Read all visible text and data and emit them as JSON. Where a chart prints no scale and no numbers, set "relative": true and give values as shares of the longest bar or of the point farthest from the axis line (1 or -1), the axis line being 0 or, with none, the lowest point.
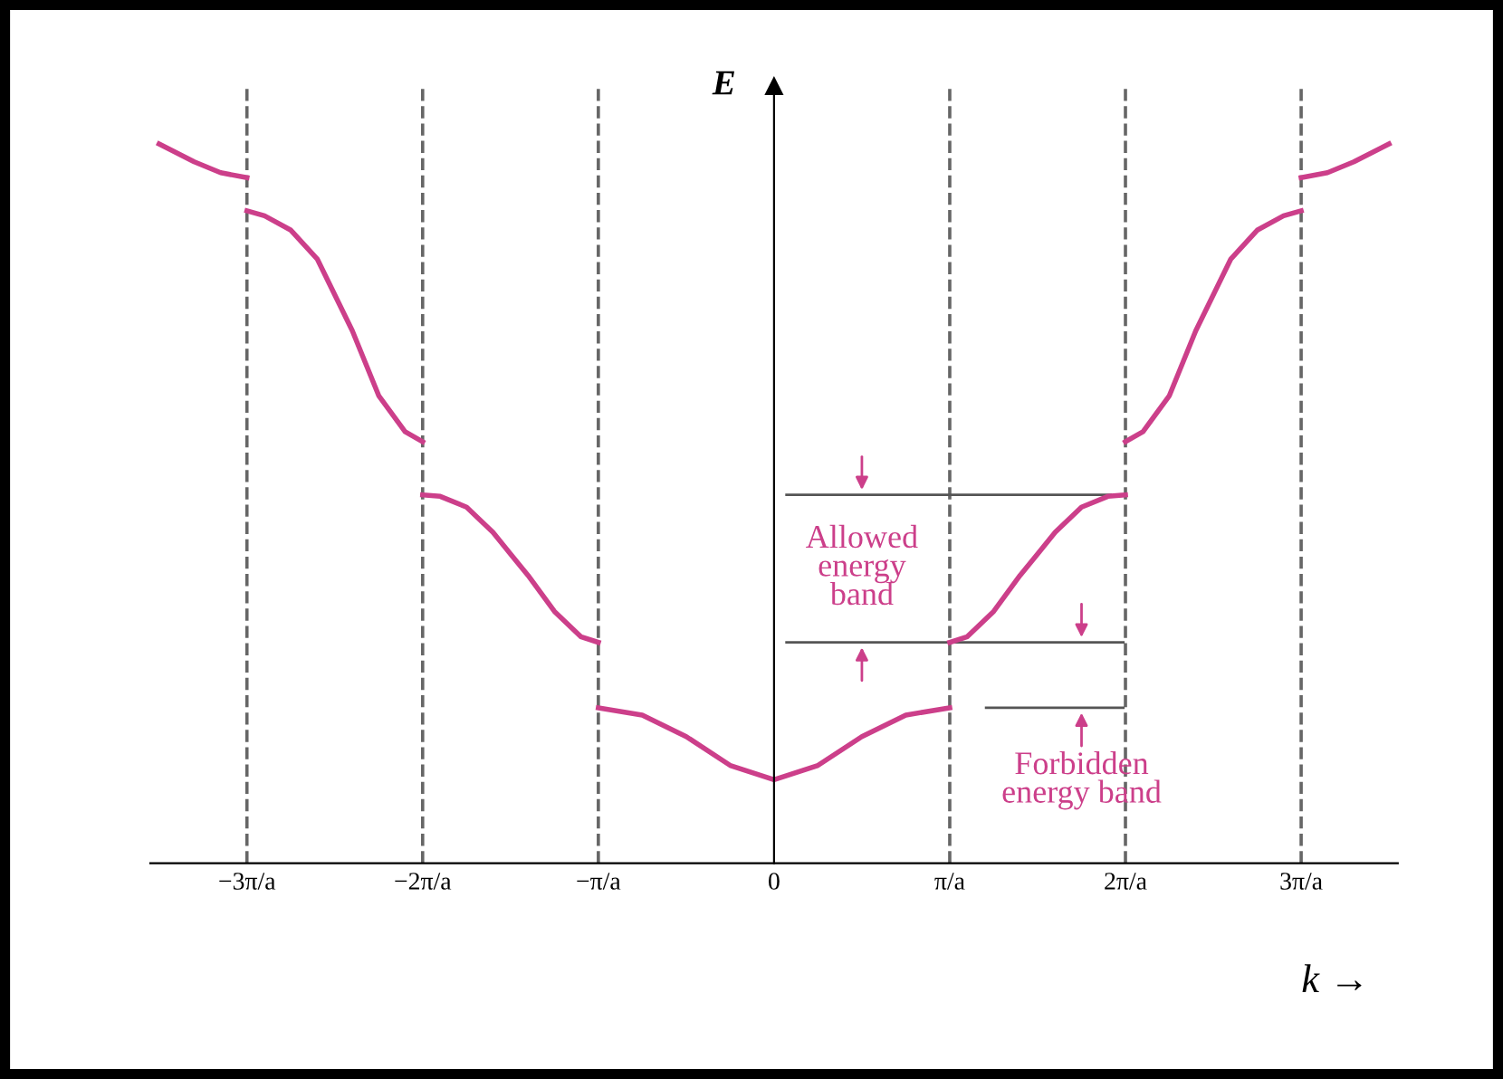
{
  "chart_data": {
    "type": "line",
    "relative": true,
    "xlabel": "k →",
    "ylabel": "E",
    "xlim": [
      -3.55,
      3.55
    ],
    "xticks": [
      {
        "value": -3,
        "label": "−3π/a"
      },
      {
        "value": -2,
        "label": "−2π/a"
      },
      {
        "value": -1,
        "label": "−π/a"
      },
      0,
      {
        "value": 1,
        "label": "π/a"
      },
      {
        "value": 2,
        "label": "2π/a"
      },
      {
        "value": 3,
        "label": "3π/a"
      }
    ],
    "grid": false,
    "legend": false,
    "marker": "none",
    "line_style": "solid",
    "series": [
      {
        "color": "#cc3f8a",
        "x": [
          -1,
          -0.75,
          -0.5,
          -0.25,
          0,
          0.25,
          0.5,
          0.75,
          1
        ],
        "values": [
          0.216,
          0.206,
          0.176,
          0.136,
          0.116,
          0.136,
          0.176,
          0.206,
          0.216
        ]
      },
      {
        "color": "#cc3f8a",
        "x": [
          1,
          1.1,
          1.25,
          1.4,
          1.5,
          1.6,
          1.75,
          1.9,
          2
        ],
        "values": [
          0.307,
          0.315,
          0.35,
          0.4,
          0.43,
          0.46,
          0.495,
          0.51,
          0.512
        ]
      },
      {
        "color": "#cc3f8a",
        "x": [
          -2,
          -1.9,
          -1.75,
          -1.6,
          -1.5,
          -1.4,
          -1.25,
          -1.1,
          -1
        ],
        "values": [
          0.512,
          0.51,
          0.495,
          0.46,
          0.43,
          0.4,
          0.35,
          0.315,
          0.307
        ]
      },
      {
        "color": "#cc3f8a",
        "x": [
          2,
          2.1,
          2.25,
          2.4,
          2.5,
          2.6,
          2.75,
          2.9,
          3
        ],
        "values": [
          0.586,
          0.6,
          0.65,
          0.74,
          0.79,
          0.84,
          0.88,
          0.9,
          0.907
        ]
      },
      {
        "color": "#cc3f8a",
        "x": [
          -3,
          -2.9,
          -2.75,
          -2.6,
          -2.5,
          -2.4,
          -2.25,
          -2.1,
          -2
        ],
        "values": [
          0.907,
          0.9,
          0.88,
          0.84,
          0.79,
          0.74,
          0.65,
          0.6,
          0.586
        ]
      },
      {
        "color": "#cc3f8a",
        "x": [
          3,
          3.15,
          3.3,
          3.5
        ],
        "values": [
          0.953,
          0.96,
          0.975,
          1.0
        ]
      },
      {
        "color": "#cc3f8a",
        "x": [
          -3.5,
          -3.3,
          -3.15,
          -3
        ],
        "values": [
          1.0,
          0.975,
          0.96,
          0.953
        ]
      }
    ],
    "ref_lines": [
      {
        "axis": "x",
        "value": -3,
        "color": "#666666",
        "line_style": "dashed"
      },
      {
        "axis": "x",
        "value": -2,
        "color": "#666666",
        "line_style": "dashed"
      },
      {
        "axis": "x",
        "value": -1,
        "color": "#666666",
        "line_style": "dashed"
      },
      {
        "axis": "x",
        "value": 1,
        "color": "#666666",
        "line_style": "dashed"
      },
      {
        "axis": "x",
        "value": 2,
        "color": "#666666",
        "line_style": "dashed"
      },
      {
        "axis": "x",
        "value": 3,
        "color": "#666666",
        "line_style": "dashed"
      },
      {
        "axis": "y",
        "value": 0.512,
        "color": "#555555",
        "line_style": "solid"
      },
      {
        "axis": "y",
        "value": 0.307,
        "color": "#555555",
        "line_style": "solid"
      },
      {
        "axis": "y",
        "value": 0.216,
        "color": "#555555",
        "line_style": "solid"
      }
    ],
    "annotations": [
      "Allowed\nenergy\nband",
      "Forbidden\nenergy band"
    ]
  }
}
